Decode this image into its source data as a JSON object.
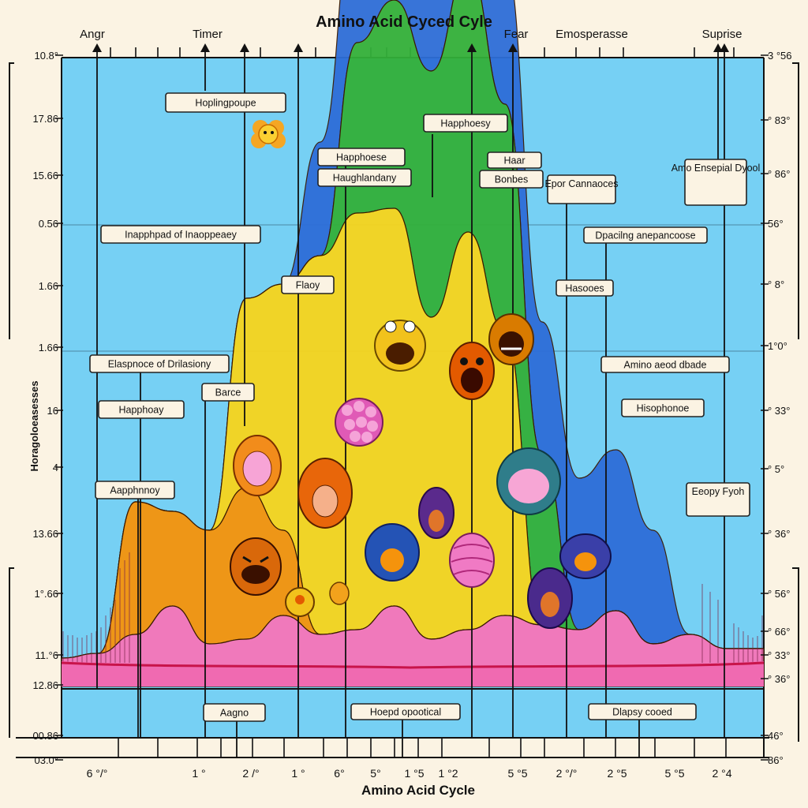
{
  "chart_data": {
    "type": "area",
    "title": "Amino Acid Cyced Cyle",
    "xlabel": "Amino Acid Cycle",
    "ylabel": "Horagoloeasesses",
    "emotions": [
      "Angr",
      "Timer",
      "Fear",
      "Emosperasse",
      "Suprise"
    ],
    "y_ticks_left": [
      "10.8°",
      "17.86",
      "15.66",
      "0.56",
      "1.66",
      "1.66",
      "16",
      "4",
      "13.66",
      "1°.66",
      "11.°6",
      "12.86",
      "00.86",
      "03.0°"
    ],
    "y_ticks_right": [
      "3 °56",
      "° 83°",
      "° 86°",
      "56°",
      "° 8°",
      "1°0°",
      "° 33°",
      "° 5°",
      "° 36°",
      "° 56°",
      "° 66°",
      "° 33°",
      "° 36°",
      "46°",
      "86°"
    ],
    "x_ticks": [
      "6 °/°",
      "1 °",
      "2 /°",
      "1 °",
      "6°",
      "5°",
      "1 °5",
      "1 °2",
      "5 °5",
      "2 °/°",
      "2 °5",
      "5 °5",
      "2 °4"
    ],
    "annotations": [
      "Hoplingpoupe",
      "Happhoesy",
      "Happhoese",
      "Haughlandany",
      "Haar",
      "Bonbes",
      "Epor Cannaoces",
      "Amo Ensepial Dyool",
      "Inapphpad of Inaoppeaey",
      "Dpacilng anepancoose",
      "Flaoy",
      "Hasooes",
      "Elaspnoce of Drilasiony",
      "Amino aeod dbade",
      "Barce",
      "Happhoay",
      "Hisophonoe",
      "Aapphnnoy",
      "Eeopy Fyoh",
      "Aagno",
      "Hoepd opootical",
      "Dlapsy cooed"
    ],
    "series": [
      {
        "name": "Pink base",
        "color": "#f775b9",
        "values": [
          3,
          3.5,
          5.5,
          8.5,
          4.5,
          5,
          7.5,
          5.5,
          6,
          8.5,
          5,
          6,
          7.5,
          6.5,
          6,
          8,
          4.5,
          5.5,
          4,
          4
        ]
      },
      {
        "name": "Orange",
        "color": "#f5930c",
        "values": [
          0,
          0,
          14,
          10,
          12,
          16,
          9,
          0,
          0,
          0,
          0,
          0,
          0,
          0,
          0,
          0,
          0,
          0,
          0,
          0
        ]
      },
      {
        "name": "Yellow",
        "color": "#f7d51d",
        "values": [
          0,
          0,
          0,
          0,
          0,
          20,
          26,
          40,
          44,
          42,
          34,
          42,
          30,
          0,
          0,
          0,
          0,
          0,
          0,
          0
        ]
      },
      {
        "name": "Green",
        "color": "#33b03a",
        "values": [
          0,
          0,
          0,
          0,
          0,
          0,
          0,
          0,
          18,
          22,
          26,
          28,
          24,
          18,
          0,
          0,
          0,
          0,
          0,
          0
        ]
      },
      {
        "name": "Blue",
        "color": "#2e6ed8",
        "values": [
          0,
          0,
          0,
          0,
          0,
          0,
          0,
          12,
          16,
          15,
          14,
          13,
          15,
          14,
          16,
          17,
          12,
          0,
          0,
          0
        ]
      }
    ]
  }
}
